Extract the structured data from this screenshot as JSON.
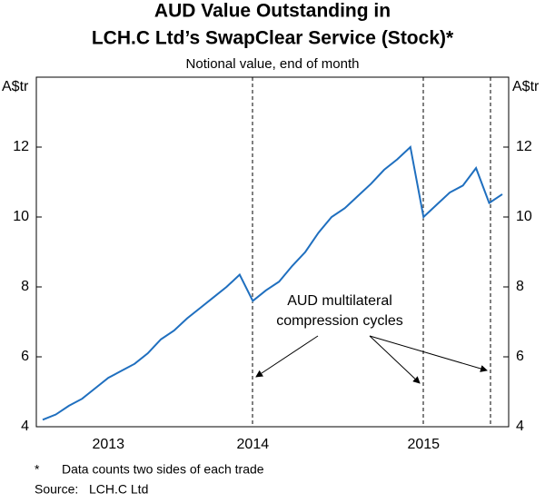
{
  "chart_data": {
    "type": "line",
    "title": [
      "AUD Value Outstanding in",
      "LCH.C Ltd’s SwapClear Service (Stock)*"
    ],
    "subtitle": "Notional value, end of month",
    "y_unit": "A$tr",
    "categories": [
      null,
      null,
      null,
      null,
      null,
      "2013",
      null,
      null,
      null,
      null,
      null,
      null,
      null,
      null,
      null,
      null,
      "2014",
      null,
      null,
      null,
      null,
      null,
      null,
      null,
      null,
      null,
      null,
      null,
      null,
      "2015",
      null,
      null,
      null,
      null,
      null,
      null
    ],
    "series": [
      {
        "color": "#1f6fbf",
        "values": [
          4.2,
          4.35,
          4.6,
          4.8,
          5.1,
          5.4,
          5.6,
          5.8,
          6.1,
          6.5,
          6.75,
          7.1,
          7.4,
          7.7,
          8.0,
          8.35,
          7.6,
          7.9,
          8.15,
          8.6,
          9.0,
          9.55,
          10.0,
          10.25,
          10.6,
          10.95,
          11.35,
          11.65,
          12.0,
          10.0,
          10.35,
          10.7,
          10.9,
          11.4,
          10.4,
          10.65
        ]
      }
    ],
    "ylim": [
      4,
      14
    ],
    "yticks": [
      4,
      6,
      8,
      10,
      12
    ],
    "annotation": [
      "AUD multilateral",
      "compression cycles"
    ],
    "notes": [
      [
        "*",
        "Data counts two sides of each trade"
      ],
      [
        "Source:",
        "LCH.C Ltd"
      ]
    ]
  }
}
